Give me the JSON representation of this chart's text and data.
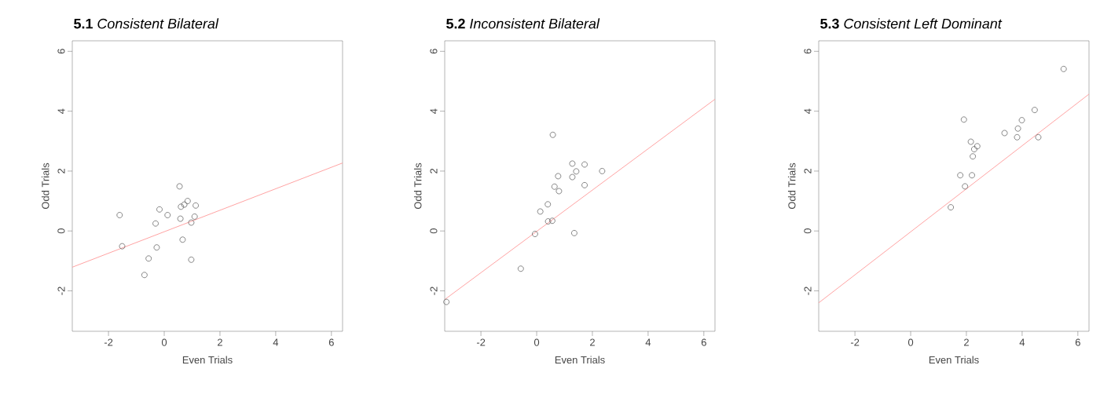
{
  "chart_data": [
    {
      "type": "scatter",
      "title": "**5.1** *Consistent Bilateral*",
      "xlabel": "Even Trials",
      "ylabel": "Odd Trials",
      "xlim": [
        -3.3,
        6.4
      ],
      "ylim": [
        -3.35,
        6.35
      ],
      "xticks": [
        -2,
        0,
        2,
        4,
        6
      ],
      "yticks": [
        -2,
        0,
        2,
        4,
        6
      ],
      "series": [
        {
          "marker": "circle",
          "color": "#555555",
          "x": [
            -1.6,
            -1.51,
            -0.71,
            -0.56,
            -0.27,
            -0.31,
            -0.17,
            0.12,
            0.55,
            0.58,
            0.6,
            0.72,
            0.84,
            1.13,
            1.09,
            0.97,
            0.66,
            0.97
          ],
          "values": [
            0.53,
            -0.51,
            -1.47,
            -0.92,
            -0.55,
            0.25,
            0.72,
            0.53,
            1.49,
            0.41,
            0.81,
            0.88,
            1.0,
            0.85,
            0.48,
            0.28,
            -0.29,
            -0.96
          ]
        },
        {
          "type": "line",
          "color": "#ff9999",
          "x": [
            -3.3,
            6.4
          ],
          "values": [
            -1.21,
            2.27
          ]
        }
      ]
    },
    {
      "type": "scatter",
      "title": "**5.2** *Inconsistent Bilateral*",
      "xlabel": "Even Trials",
      "ylabel": "Odd Trials",
      "xlim": [
        -3.3,
        6.4
      ],
      "ylim": [
        -3.35,
        6.35
      ],
      "xticks": [
        -2,
        0,
        2,
        4,
        6
      ],
      "yticks": [
        -2,
        0,
        2,
        4,
        6
      ],
      "series": [
        {
          "marker": "circle",
          "color": "#555555",
          "x": [
            -3.24,
            -0.57,
            -0.06,
            0.13,
            0.4,
            0.41,
            0.56,
            0.64,
            0.8,
            0.77,
            0.58,
            1.28,
            1.28,
            1.42,
            1.72,
            1.72,
            2.35,
            1.35
          ],
          "values": [
            -2.37,
            -1.26,
            -0.1,
            0.65,
            0.89,
            0.32,
            0.34,
            1.48,
            1.33,
            1.83,
            3.21,
            2.25,
            1.8,
            1.99,
            2.22,
            1.53,
            2.0,
            -0.07
          ]
        },
        {
          "type": "line",
          "color": "#ff9999",
          "x": [
            -3.3,
            6.4
          ],
          "values": [
            -2.29,
            4.4
          ]
        }
      ]
    },
    {
      "type": "scatter",
      "title": "**5.3** *Consistent Left Dominant*",
      "xlabel": "Even Trials",
      "ylabel": "Odd Trials",
      "xlim": [
        -3.3,
        6.4
      ],
      "ylim": [
        -3.35,
        6.35
      ],
      "xticks": [
        -2,
        0,
        2,
        4,
        6
      ],
      "yticks": [
        -2,
        0,
        2,
        4,
        6
      ],
      "series": [
        {
          "marker": "circle",
          "color": "#555555",
          "x": [
            1.44,
            1.78,
            1.95,
            2.2,
            1.91,
            2.16,
            2.23,
            2.28,
            2.39,
            3.37,
            3.82,
            3.85,
            3.99,
            4.45,
            4.58,
            5.49
          ],
          "values": [
            0.79,
            1.86,
            1.49,
            1.86,
            3.72,
            2.98,
            2.49,
            2.73,
            2.83,
            3.27,
            3.13,
            3.42,
            3.7,
            4.04,
            3.13,
            5.41
          ]
        },
        {
          "type": "line",
          "color": "#ff9999",
          "x": [
            -3.3,
            6.4
          ],
          "values": [
            -2.4,
            4.57
          ]
        }
      ]
    }
  ]
}
